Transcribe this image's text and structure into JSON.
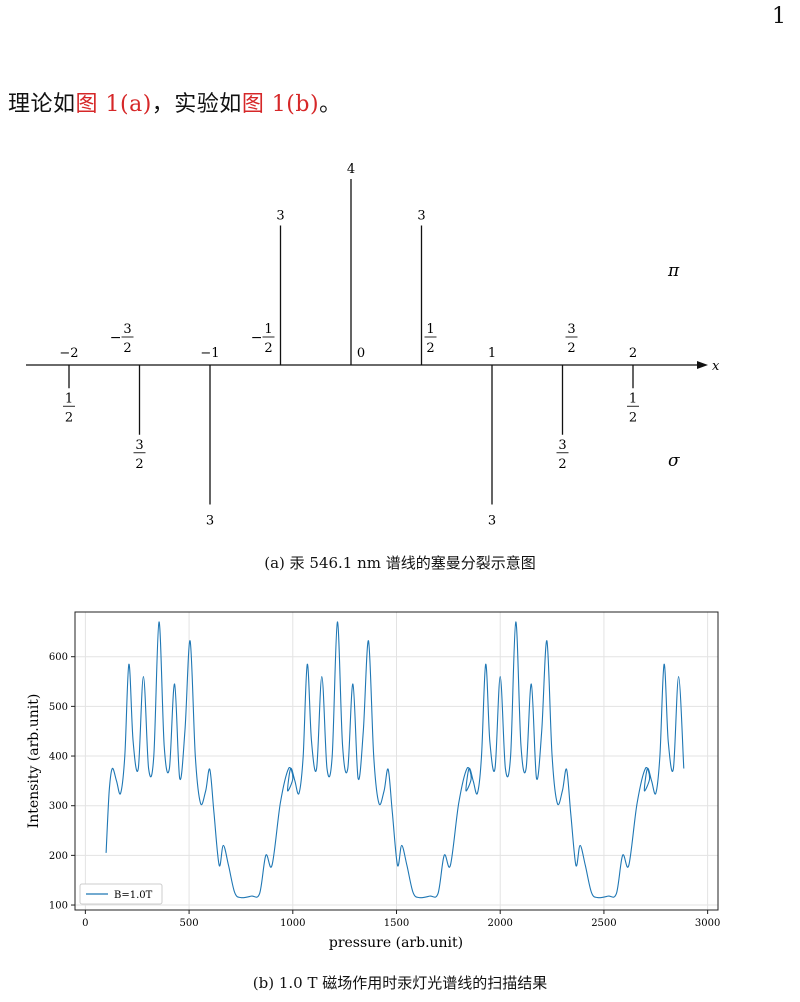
{
  "page_number": "1",
  "intro": {
    "part1": "理论如",
    "ref1": "图 1(a)",
    "part2": "，实验如",
    "ref2": "图 1(b)",
    "part3": "。"
  },
  "figure_a": {
    "caption": "(a) 汞 546.1 nm 谱线的塞曼分裂示意图",
    "axis_label": "x",
    "pi_label": "π",
    "sigma_label": "σ",
    "pi_lines": [
      {
        "pos": -0.5,
        "value": "3"
      },
      {
        "pos": 0,
        "value": "4"
      },
      {
        "pos": 0.5,
        "value": "3"
      }
    ],
    "sigma_lines": [
      {
        "pos": -2,
        "num": "1",
        "den": "2"
      },
      {
        "pos": -1.5,
        "num": "3",
        "den": "2"
      },
      {
        "pos": -1,
        "text": "3"
      },
      {
        "pos": 1,
        "text": "3"
      },
      {
        "pos": 1.5,
        "num": "3",
        "den": "2"
      },
      {
        "pos": 2,
        "num": "1",
        "den": "2"
      }
    ],
    "ticks": [
      {
        "pos": -2,
        "text": "−2"
      },
      {
        "pos": -1.5,
        "sign": "−",
        "num": "3",
        "den": "2"
      },
      {
        "pos": -1,
        "text": "−1"
      },
      {
        "pos": -0.5,
        "sign": "−",
        "num": "1",
        "den": "2"
      },
      {
        "pos": 0,
        "text": "0"
      },
      {
        "pos": 0.5,
        "num": "1",
        "den": "2"
      },
      {
        "pos": 1,
        "text": "1"
      },
      {
        "pos": 1.5,
        "num": "3",
        "den": "2"
      },
      {
        "pos": 2,
        "text": "2"
      }
    ]
  },
  "chart_data": {
    "type": "line",
    "title": "",
    "xlabel": "pressure (arb.unit)",
    "ylabel": "Intensity (arb.unit)",
    "xlim": [
      -50,
      3050
    ],
    "ylim": [
      90,
      690
    ],
    "xticks": [
      "0",
      "500",
      "1000",
      "1500",
      "2000",
      "2500",
      "3000"
    ],
    "yticks": [
      "100",
      "200",
      "300",
      "400",
      "500",
      "600"
    ],
    "grid": true,
    "legend": "lower-left",
    "series": [
      {
        "name": "B=1.0T",
        "color": "#1f77b4",
        "x": [
          100,
          115,
          130,
          150,
          170,
          190,
          210,
          230,
          255,
          280,
          305,
          330,
          355,
          380,
          405,
          430,
          455,
          480,
          505,
          530,
          555,
          580,
          600,
          620,
          645,
          665,
          690,
          720,
          750,
          800,
          840,
          870,
          900,
          940,
          980,
          1000
        ],
        "y": [
          205,
          330,
          375,
          350,
          325,
          400,
          585,
          430,
          375,
          560,
          375,
          400,
          670,
          420,
          375,
          545,
          355,
          450,
          632,
          400,
          305,
          330,
          373,
          285,
          180,
          220,
          180,
          125,
          115,
          118,
          123,
          200,
          180,
          305,
          375,
          355
        ]
      }
    ]
  },
  "figure_b": {
    "caption": "(b) 1.0 T 磁场作用时汞灯光谱线的扫描结果"
  }
}
